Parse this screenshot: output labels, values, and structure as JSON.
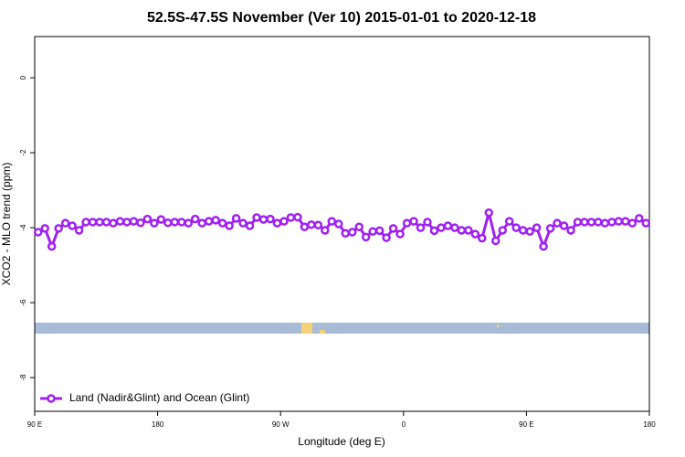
{
  "chart_data": {
    "type": "line",
    "title": "52.5S-47.5S November (Ver 10)   2015-01-01 to 2020-12-18",
    "x_label": "Longitude (deg E)",
    "y_label": "XCO2 - MLO trend (ppm)",
    "xlim": [
      90,
      540
    ],
    "ylim": [
      -8.9,
      1.1
    ],
    "xticks": [
      {
        "value": 90,
        "label": "90 E"
      },
      180,
      {
        "value": 270,
        "label": "90 W"
      },
      {
        "value": 360,
        "label": "0"
      },
      {
        "value": 450,
        "label": "90 E"
      },
      {
        "value": 540,
        "label": "180"
      }
    ],
    "yticks": [
      0,
      -2,
      -4,
      -6,
      -8
    ],
    "legend": "bottomleft",
    "series": [
      {
        "name": "Land (Nadir&Glint) and Ocean (Glint)",
        "color": "#a020f0",
        "x": [
          92.5,
          97.5,
          102.5,
          107.5,
          112.5,
          117.5,
          122.5,
          127.5,
          132.5,
          137.5,
          142.5,
          147.5,
          152.5,
          157.5,
          162.5,
          167.5,
          172.5,
          177.5,
          182.5,
          187.5,
          192.5,
          197.5,
          202.5,
          207.5,
          212.5,
          217.5,
          222.5,
          227.5,
          232.5,
          237.5,
          242.5,
          247.5,
          252.5,
          257.5,
          262.5,
          267.5,
          272.5,
          277.5,
          282.5,
          287.5,
          292.5,
          297.5,
          302.5,
          307.5,
          312.5,
          317.5,
          322.5,
          327.5,
          332.5,
          337.5,
          342.5,
          347.5,
          352.5,
          357.5,
          362.5,
          367.5,
          372.5,
          377.5,
          382.5,
          387.5,
          392.5,
          397.5,
          402.5,
          407.5,
          412.5,
          417.5,
          422.5,
          427.5,
          432.5,
          437.5,
          442.5,
          447.5,
          452.5,
          457.5,
          462.5,
          467.5,
          472.5,
          477.5,
          482.5,
          487.5,
          492.5,
          497.5,
          502.5,
          507.5,
          512.5,
          517.5,
          522.5,
          527.5,
          532.5,
          537.5
        ],
        "values": [
          -4.12,
          -4.02,
          -4.5,
          -4.02,
          -3.88,
          -3.95,
          -4.07,
          -3.85,
          -3.85,
          -3.85,
          -3.85,
          -3.88,
          -3.83,
          -3.85,
          -3.83,
          -3.87,
          -3.77,
          -3.88,
          -3.78,
          -3.87,
          -3.85,
          -3.85,
          -3.88,
          -3.77,
          -3.88,
          -3.83,
          -3.8,
          -3.88,
          -3.95,
          -3.75,
          -3.88,
          -3.95,
          -3.73,
          -3.78,
          -3.77,
          -3.88,
          -3.83,
          -3.73,
          -3.72,
          -3.98,
          -3.92,
          -3.93,
          -4.07,
          -3.83,
          -3.9,
          -4.15,
          -4.12,
          -3.98,
          -4.25,
          -4.1,
          -4.08,
          -4.27,
          -4.02,
          -4.17,
          -3.88,
          -3.83,
          -4.0,
          -3.85,
          -4.08,
          -4.0,
          -3.95,
          -4.0,
          -4.07,
          -4.07,
          -4.17,
          -4.28,
          -3.6,
          -4.35,
          -4.07,
          -3.83,
          -4.0,
          -4.07,
          -4.1,
          -4.0,
          -4.5,
          -4.02,
          -3.88,
          -3.95,
          -4.07,
          -3.85,
          -3.85,
          -3.85,
          -3.85,
          -3.88,
          -3.85,
          -3.83,
          -3.83,
          -3.88,
          -3.75,
          -3.88
        ]
      }
    ]
  }
}
